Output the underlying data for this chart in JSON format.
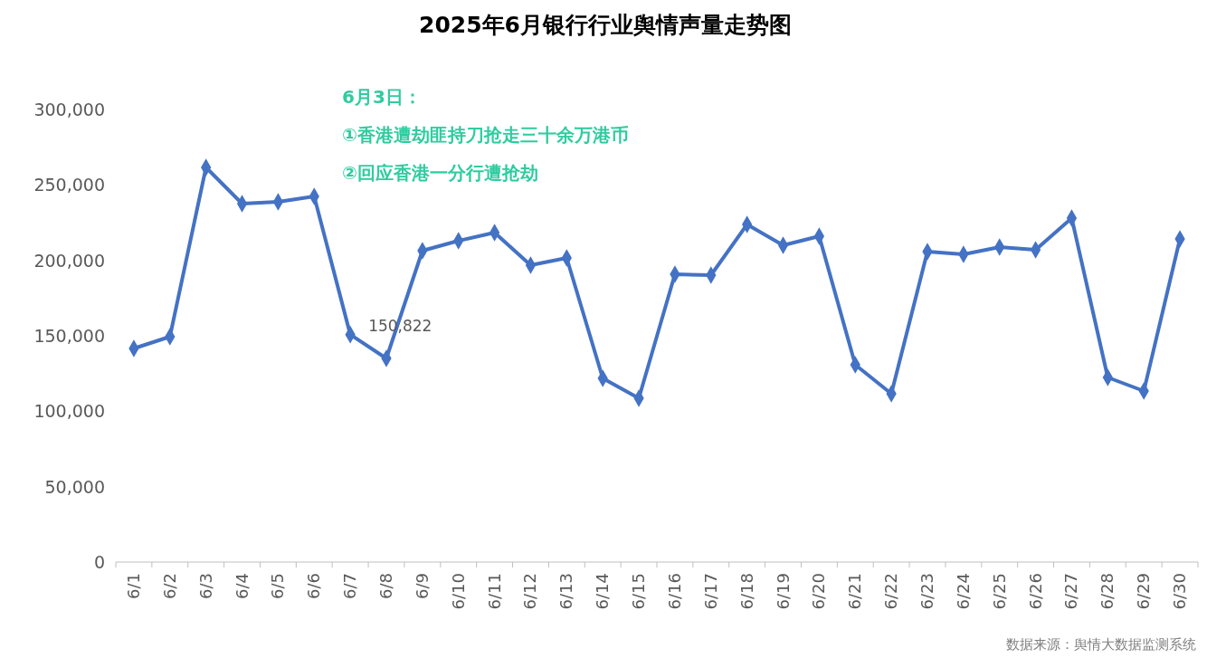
{
  "chart_data": {
    "type": "line",
    "title": "2025年6月银行行业舆情声量走势图",
    "categories": [
      "6/1",
      "6/2",
      "6/3",
      "6/4",
      "6/5",
      "6/6",
      "6/7",
      "6/8",
      "6/9",
      "6/10",
      "6/11",
      "6/12",
      "6/13",
      "6/14",
      "6/15",
      "6/16",
      "6/17",
      "6/18",
      "6/19",
      "6/20",
      "6/21",
      "6/22",
      "6/23",
      "6/24",
      "6/25",
      "6/26",
      "6/27",
      "6/28",
      "6/29",
      "6/30"
    ],
    "series": [
      {
        "color": "#4472c4",
        "values": [
          141600,
          149400,
          261600,
          237600,
          238800,
          242400,
          150822,
          135000,
          206400,
          213000,
          218400,
          196800,
          201600,
          121800,
          108600,
          190800,
          190200,
          223800,
          210000,
          216000,
          130800,
          111600,
          205800,
          204000,
          208800,
          207000,
          228000,
          122400,
          113400,
          214200
        ],
        "value_labels": [
          null,
          null,
          null,
          null,
          null,
          null,
          "150,822",
          null,
          null,
          null,
          null,
          null,
          null,
          null,
          null,
          null,
          null,
          null,
          null,
          null,
          null,
          null,
          null,
          null,
          null,
          null,
          null,
          null,
          null,
          null
        ]
      }
    ],
    "ylim": [
      0,
      300000
    ],
    "yticks": [
      {
        "value": 0,
        "label": "0"
      },
      {
        "value": 50000,
        "label": "50,000"
      },
      {
        "value": 100000,
        "label": "100,000"
      },
      {
        "value": 150000,
        "label": "150,000"
      },
      {
        "value": 200000,
        "label": "200,000"
      },
      {
        "value": 250000,
        "label": "250,000"
      },
      {
        "value": 300000,
        "label": "300,000"
      }
    ],
    "marker": "diamond",
    "line_style": "solid",
    "annotations": [
      "6月3日：",
      "①香港遭劫匪持刀抢走三十余万港币",
      "②回应香港一分行遭抢劫",
      "数据来源：舆情大数据监测系统"
    ]
  }
}
